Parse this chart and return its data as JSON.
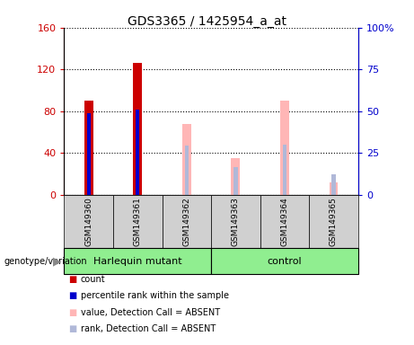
{
  "title": "GDS3365 / 1425954_a_at",
  "samples": [
    "GSM149360",
    "GSM149361",
    "GSM149362",
    "GSM149363",
    "GSM149364",
    "GSM149365"
  ],
  "count_values": [
    90,
    126,
    null,
    null,
    null,
    null
  ],
  "percentile_values": [
    78,
    82,
    null,
    null,
    null,
    null
  ],
  "absent_value_left": [
    null,
    null,
    68,
    35,
    90,
    12
  ],
  "absent_rank_left": [
    null,
    null,
    47,
    27,
    48,
    20
  ],
  "groups": [
    {
      "label": "Harlequin mutant",
      "start": 0,
      "end": 2,
      "color": "#90ee90"
    },
    {
      "label": "control",
      "start": 3,
      "end": 5,
      "color": "#90ee90"
    }
  ],
  "ylim_left": [
    0,
    160
  ],
  "ylim_right": [
    0,
    100
  ],
  "yticks_left": [
    0,
    40,
    80,
    120,
    160
  ],
  "ytick_labels_left": [
    "0",
    "40",
    "80",
    "120",
    "160"
  ],
  "yticks_right": [
    0,
    25,
    50,
    75,
    100
  ],
  "ytick_labels_right": [
    "0",
    "25",
    "50",
    "75",
    "100%"
  ],
  "color_count": "#cc0000",
  "color_percentile": "#0000cc",
  "color_absent_value": "#ffb6b6",
  "color_absent_rank": "#b0b8d8",
  "bg_plot": "#ffffff",
  "bg_label_row": "#d0d0d0",
  "legend_items": [
    {
      "color": "#cc0000",
      "label": "count"
    },
    {
      "color": "#0000cc",
      "label": "percentile rank within the sample"
    },
    {
      "color": "#ffb6b6",
      "label": "value, Detection Call = ABSENT"
    },
    {
      "color": "#b0b8d8",
      "label": "rank, Detection Call = ABSENT"
    }
  ]
}
